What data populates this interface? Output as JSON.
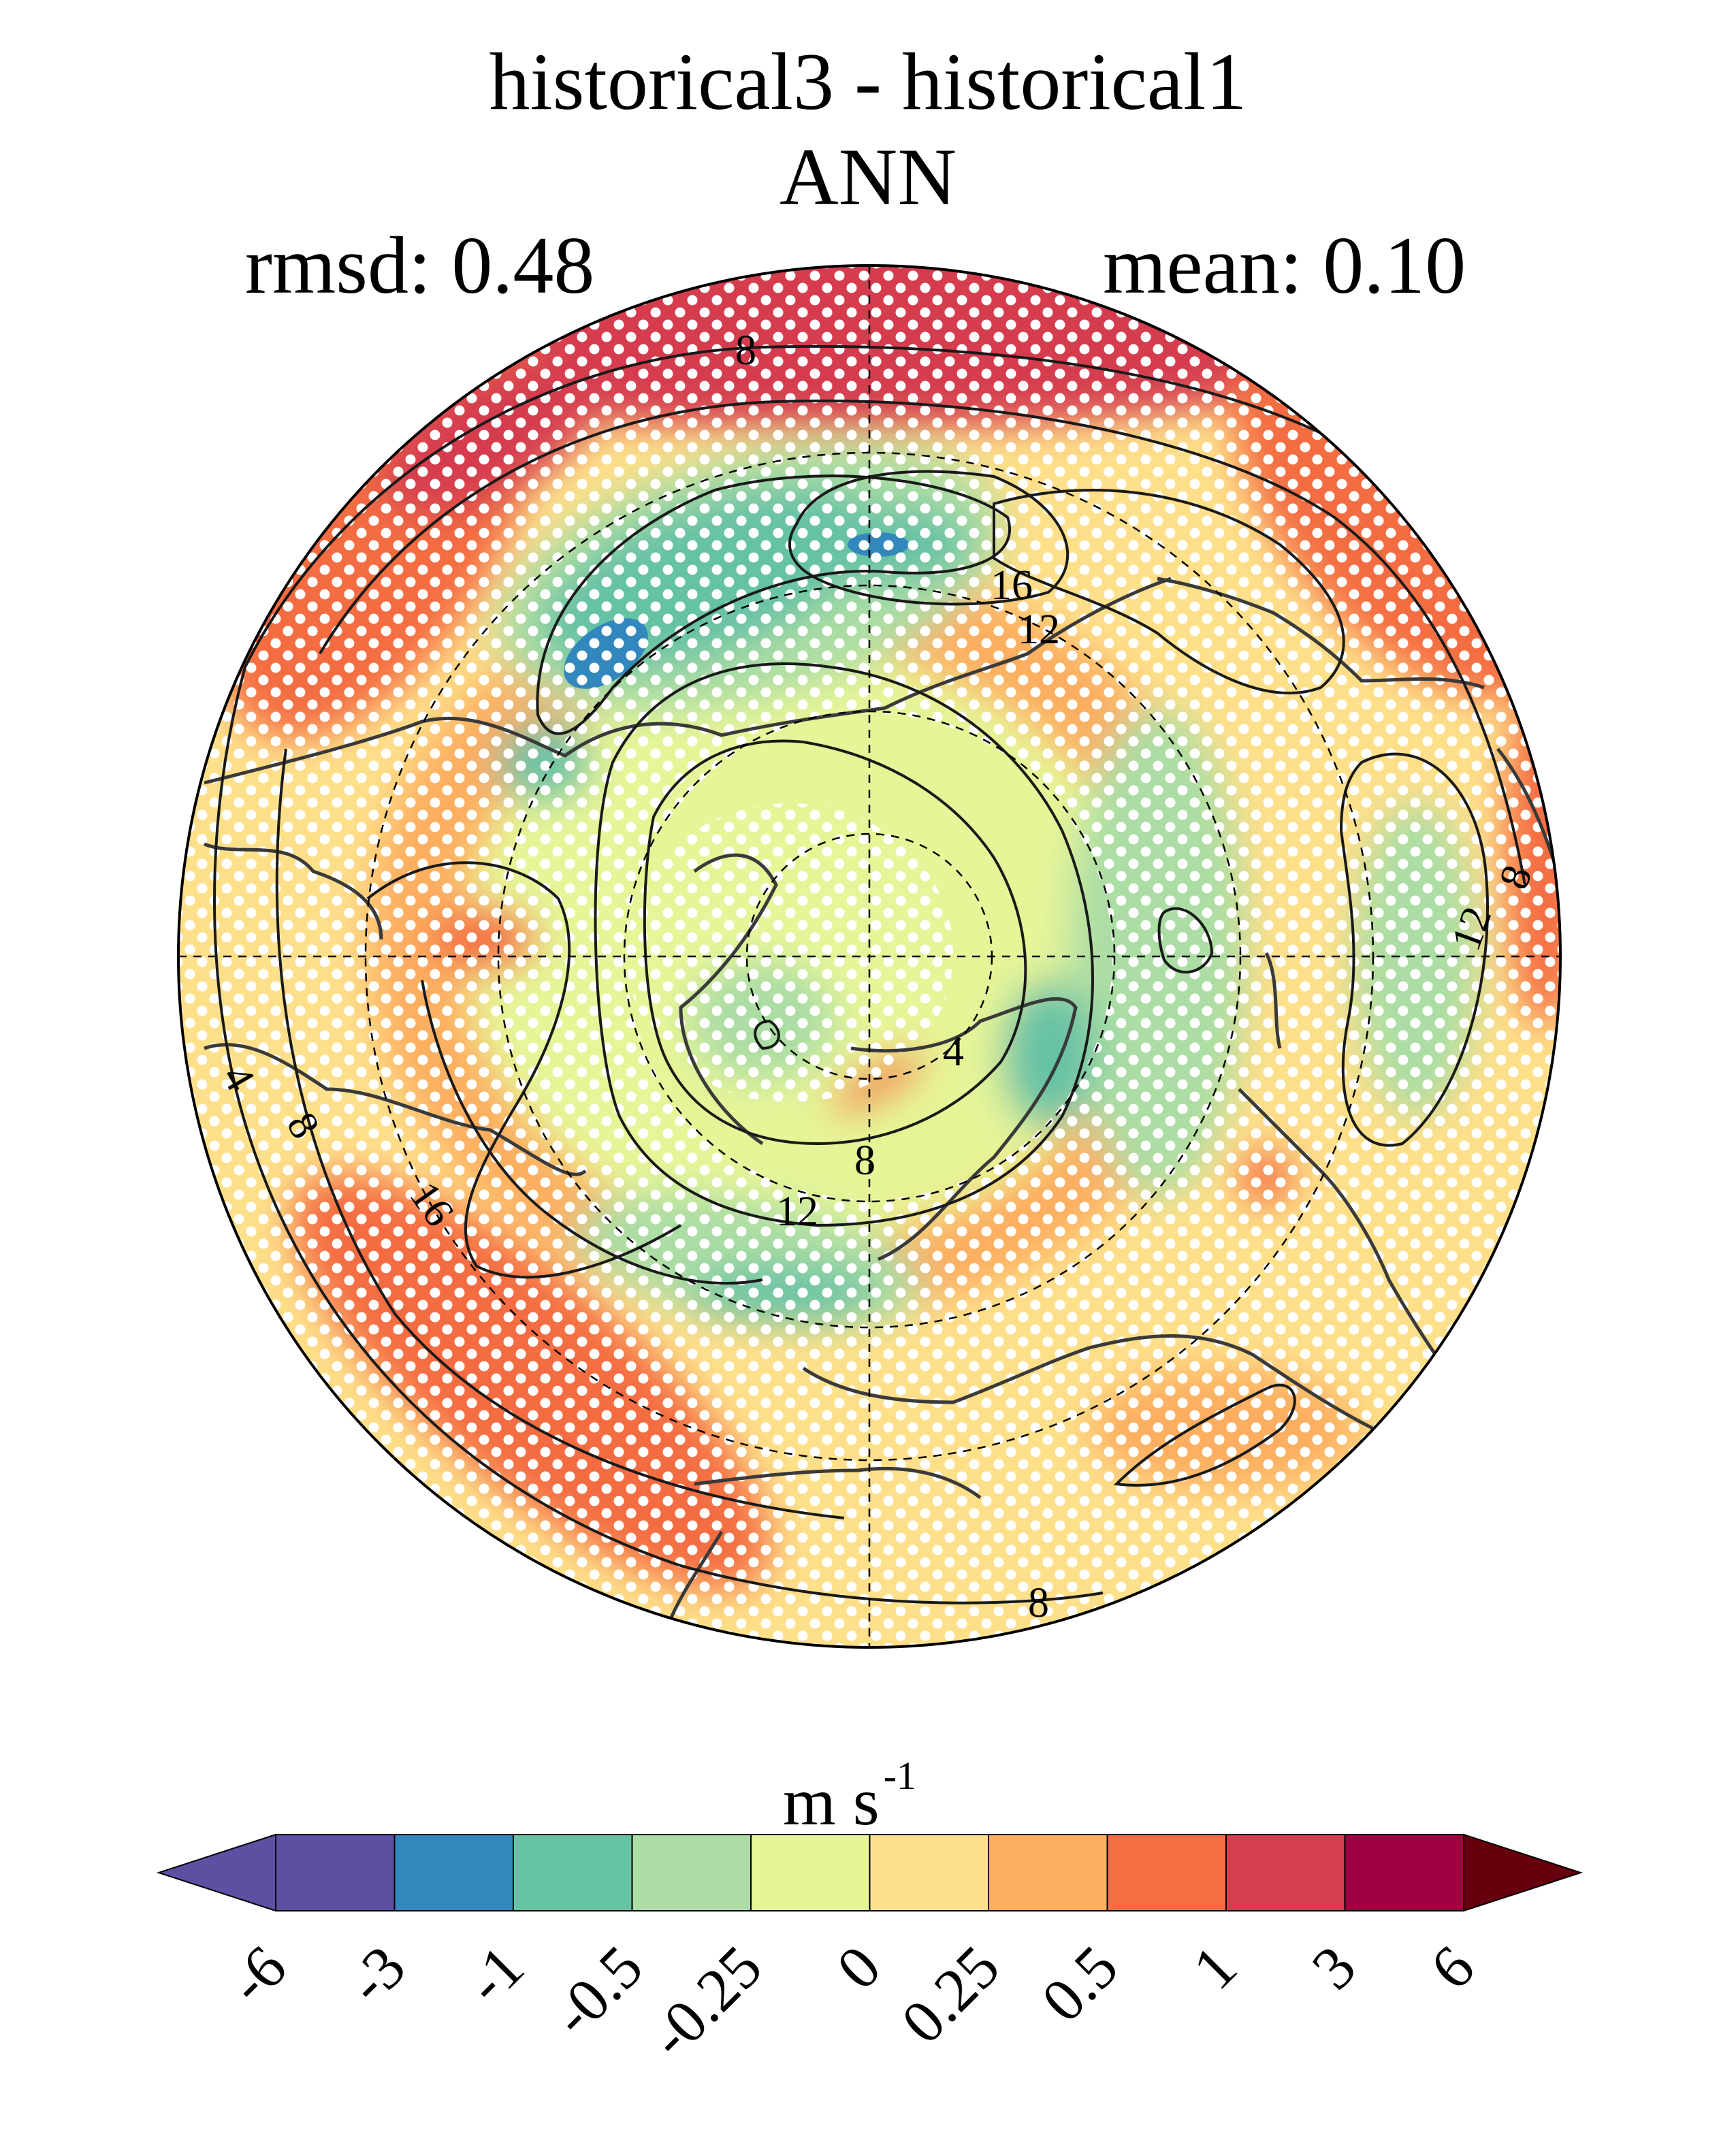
{
  "header": {
    "title_line1": "historical3 - historical1",
    "title_line2": "ANN",
    "rmsd": "rmsd: 0.48",
    "mean": "mean: 0.10"
  },
  "map": {
    "projection": "north-polar-stereographic",
    "field_description_colors": {
      "outer_band": "#d53e4f",
      "pacific_jet_negative": "#66c2a5",
      "strong_negative": "#3288bd"
    },
    "contour_labels": [
      "8",
      "16",
      "12",
      "4",
      "8",
      "12",
      "16",
      "8",
      "4",
      "12",
      "8",
      "8"
    ],
    "stippling": true,
    "coastlines": true
  },
  "colorbar": {
    "units_main": "m s",
    "units_exp": "-1",
    "ticks": [
      "-6",
      "-3",
      "-1",
      "-0.5",
      "-0.25",
      "0",
      "0.25",
      "0.5",
      "1",
      "3",
      "6"
    ],
    "colors": [
      "#5e4fa2",
      "#5e4fa2",
      "#3288bd",
      "#66c2a5",
      "#abdda4",
      "#e6f598",
      "#fee08b",
      "#fdae61",
      "#f46d43",
      "#d53e4f",
      "#9e0142",
      "#67000d"
    ]
  }
}
